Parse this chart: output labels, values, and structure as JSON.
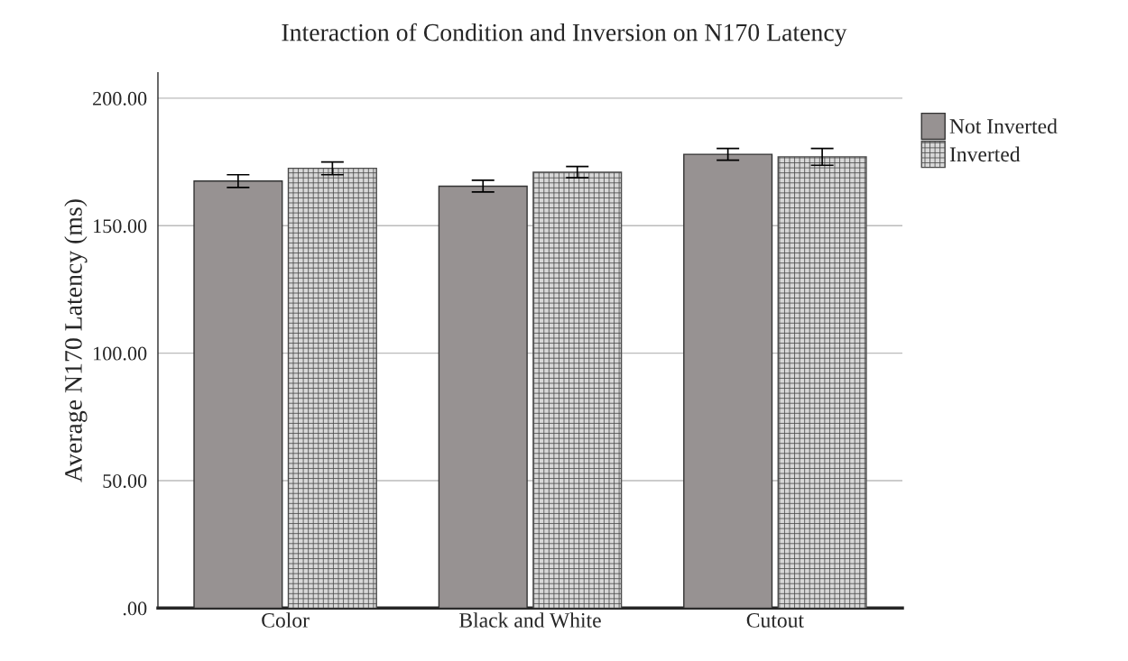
{
  "chart_data": {
    "type": "bar",
    "title": "Interaction of Condition and Inversion on N170 Latency",
    "ylabel": "Average N170 Latency (ms)",
    "categories": [
      "Color",
      "Black and White",
      "Cutout"
    ],
    "series": [
      {
        "name": "Not Inverted",
        "color": "#979292",
        "values": [
          167.5,
          165.5,
          178
        ],
        "errors": [
          2.5,
          2.3,
          2.3
        ]
      },
      {
        "name": "Inverted",
        "color": "#4a4a4a",
        "values": [
          172.5,
          171,
          177
        ],
        "errors": [
          2.5,
          2.2,
          3.3
        ]
      }
    ],
    "ylim": [
      0,
      210
    ],
    "yticks": [
      {
        "value": 0,
        "label": ".00"
      },
      {
        "value": 50,
        "label": "50.00"
      },
      {
        "value": 100,
        "label": "100.00"
      },
      {
        "value": 150,
        "label": "150.00"
      },
      {
        "value": 200,
        "label": "200.00"
      }
    ],
    "grid": "y",
    "legend": "top right"
  }
}
